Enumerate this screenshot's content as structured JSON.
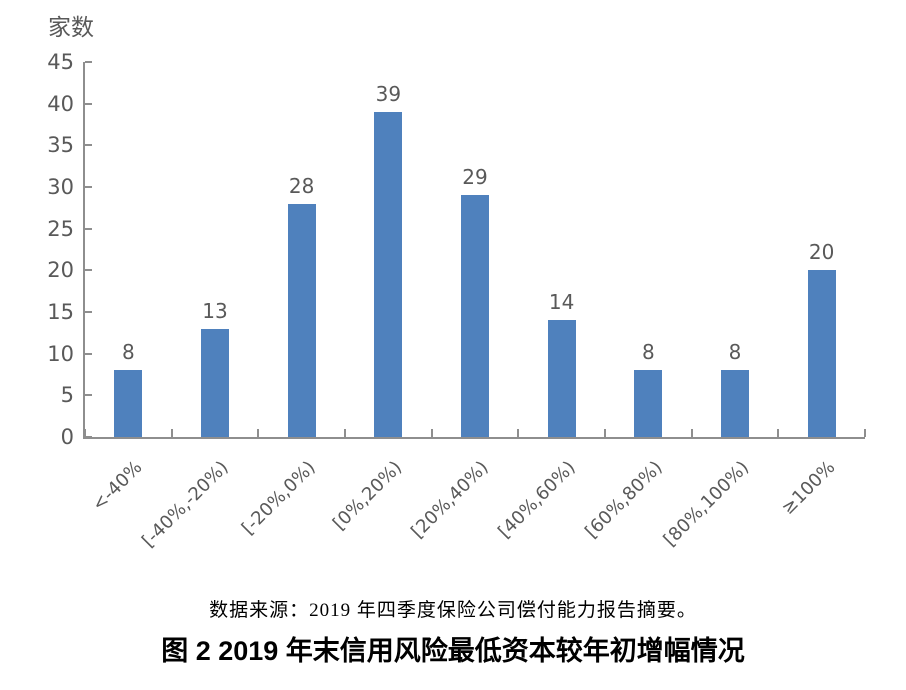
{
  "chart_data": {
    "type": "bar",
    "title": "图 2  2019 年末信用风险最低资本较年初增幅情况",
    "source_note": "数据来源：2019 年四季度保险公司偿付能力报告摘要。",
    "y_axis_title": "家数",
    "categories": [
      "<-40%",
      "[-40%,-20%)",
      "[-20%,0%)",
      "[0%,20%)",
      "[20%,40%)",
      "[40%,60%)",
      "[60%,80%)",
      "[80%,100%)",
      "≥100%"
    ],
    "values": [
      8,
      13,
      28,
      39,
      29,
      14,
      8,
      8,
      20
    ],
    "xlabel": "",
    "ylabel": "家数",
    "ylim": [
      0,
      45
    ],
    "y_ticks": [
      0,
      5,
      10,
      15,
      20,
      25,
      30,
      35,
      40,
      45
    ],
    "grid": false,
    "legend": "none",
    "data_labels": true,
    "bar_color": "#4F81BD",
    "axis_color": "#8E8E8E",
    "tick_label_color": "#595959"
  }
}
